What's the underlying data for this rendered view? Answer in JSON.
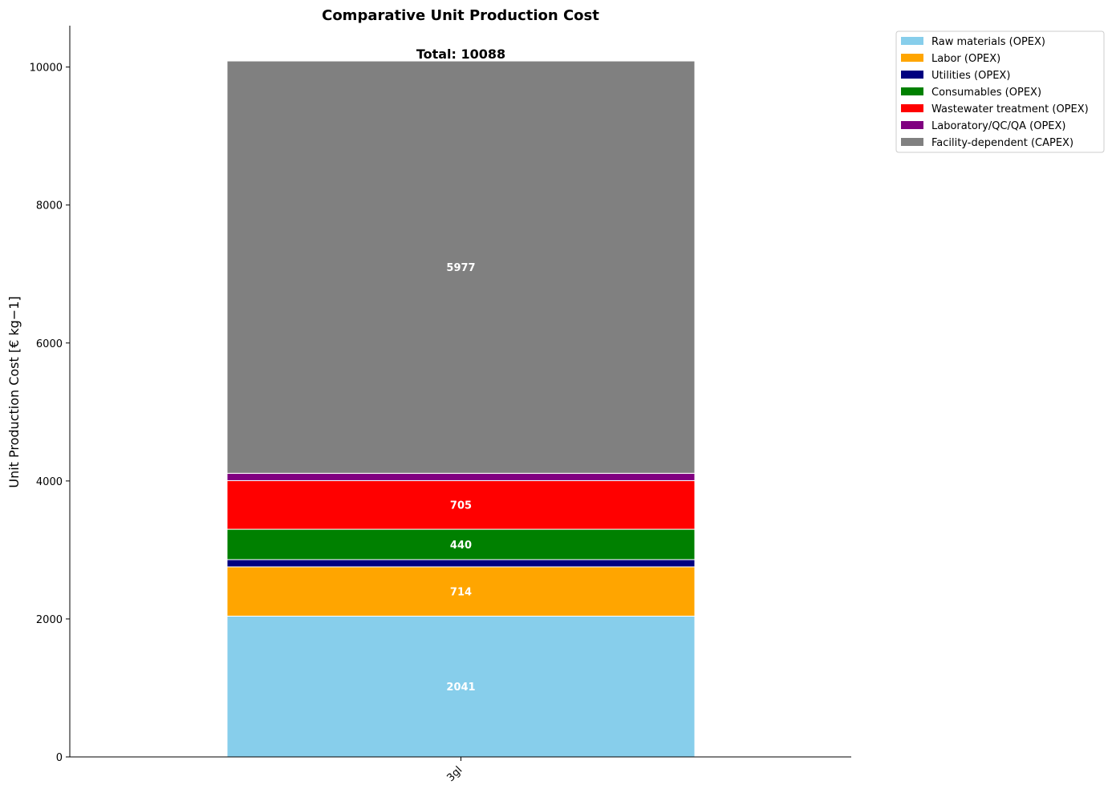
{
  "chart_data": {
    "type": "bar",
    "stacked": true,
    "title": "Comparative Unit Production Cost",
    "ylabel": "Unit Production Cost [€ kg−1]",
    "xlabel": "",
    "categories": [
      "3gl"
    ],
    "ylim": [
      0,
      10600
    ],
    "yticks": [
      0,
      2000,
      4000,
      6000,
      8000,
      10000
    ],
    "legend_position": "outside-top-right",
    "total_label": "Total: 10088",
    "series": [
      {
        "name": "Raw materials (OPEX)",
        "color": "#87ceeb",
        "values": [
          2041
        ],
        "label": "2041"
      },
      {
        "name": "Labor (OPEX)",
        "color": "#ffa500",
        "values": [
          714
        ],
        "label": "714"
      },
      {
        "name": "Utilities (OPEX)",
        "color": "#000080",
        "values": [
          105
        ],
        "label": ""
      },
      {
        "name": "Consumables (OPEX)",
        "color": "#008000",
        "values": [
          440
        ],
        "label": "440"
      },
      {
        "name": "Wastewater treatment (OPEX)",
        "color": "#ff0000",
        "values": [
          705
        ],
        "label": "705"
      },
      {
        "name": "Laboratory/QC/QA (OPEX)",
        "color": "#800080",
        "values": [
          106
        ],
        "label": ""
      },
      {
        "name": "Facility-dependent (CAPEX)",
        "color": "#808080",
        "values": [
          5977
        ],
        "label": "5977"
      }
    ]
  }
}
